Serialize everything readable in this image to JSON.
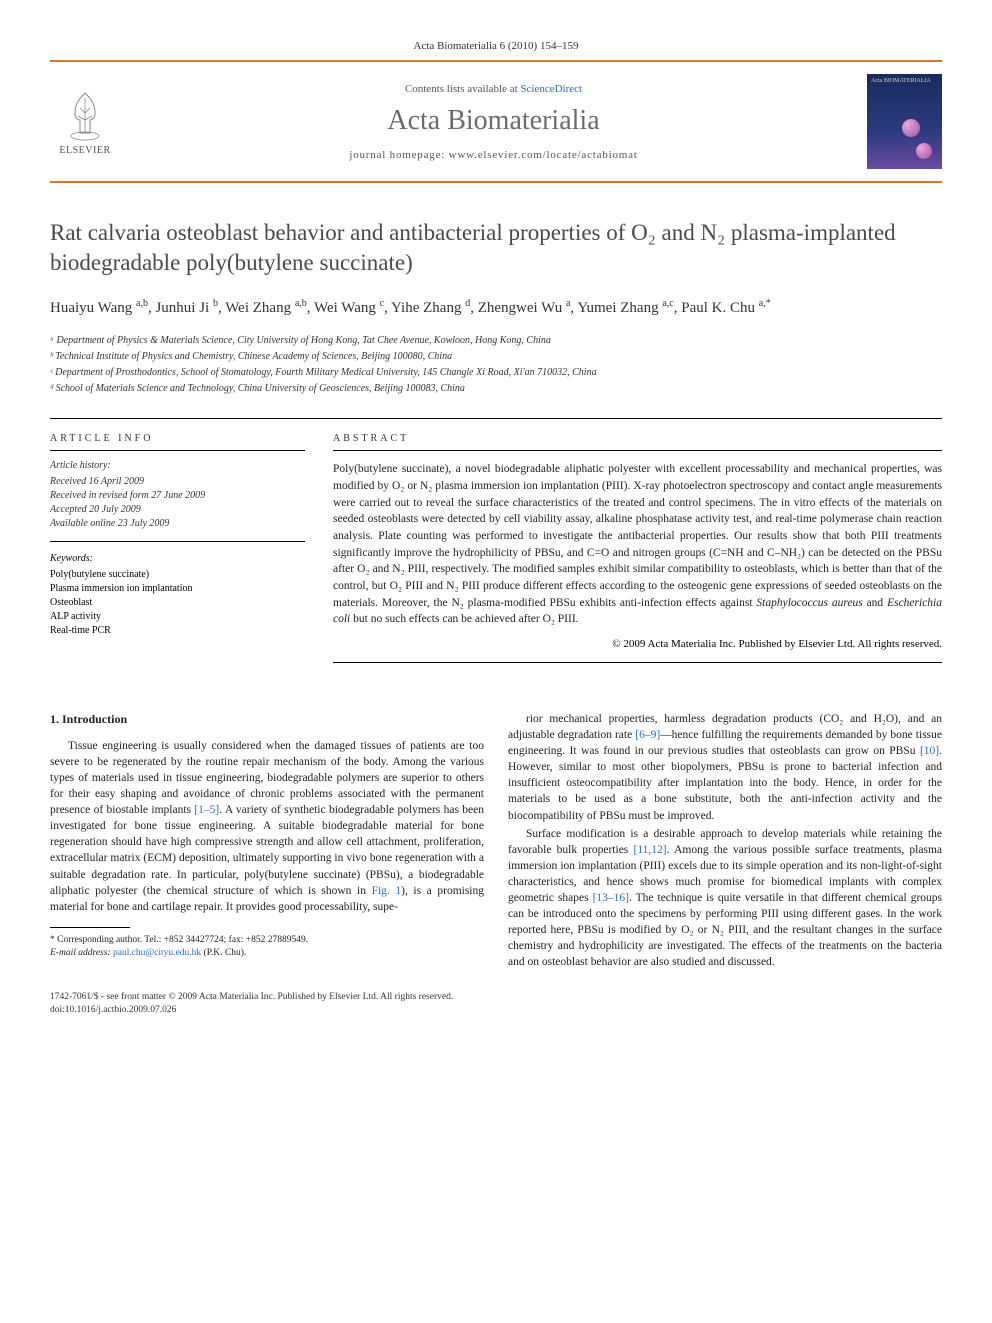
{
  "header": {
    "citation": "Acta Biomaterialia 6 (2010) 154–159",
    "contents_prefix": "Contents lists available at ",
    "contents_link": "ScienceDirect",
    "journal_name": "Acta Biomaterialia",
    "homepage_prefix": "journal homepage: ",
    "homepage_url": "www.elsevier.com/locate/actabiomat",
    "publisher": "ELSEVIER",
    "cover_label": "Acta BIOMATERIALIA"
  },
  "title": "Rat calvaria osteoblast behavior and antibacterial properties of O₂ and N₂ plasma-implanted biodegradable poly(butylene succinate)",
  "authors_html": "Huaiyu Wang <sup>a,b</sup>, Junhui Ji <sup>b</sup>, Wei Zhang <sup>a,b</sup>, Wei Wang <sup>c</sup>, Yihe Zhang <sup>d</sup>, Zhengwei Wu <sup>a</sup>, Yumei Zhang <sup>a,c</sup>, Paul K. Chu <sup>a,*</sup>",
  "affiliations": [
    "ᵃ Department of Physics & Materials Science, City University of Hong Kong, Tat Chee Avenue, Kowloon, Hong Kong, China",
    "ᵇ Technical Institute of Physics and Chemistry, Chinese Academy of Sciences, Beijing 100080, China",
    "ᶜ Department of Prosthodontics, School of Stomatology, Fourth Military Medical University, 145 Changle Xi Road, Xi'an 710032, China",
    "ᵈ School of Materials Science and Technology, China University of Geosciences, Beijing 100083, China"
  ],
  "article_info": {
    "heading": "article info",
    "history_label": "Article history:",
    "history": [
      "Received 16 April 2009",
      "Received in revised form 27 June 2009",
      "Accepted 20 July 2009",
      "Available online 23 July 2009"
    ],
    "keywords_label": "Keywords:",
    "keywords": [
      "Poly(butylene succinate)",
      "Plasma immersion ion implantation",
      "Osteoblast",
      "ALP activity",
      "Real-time PCR"
    ]
  },
  "abstract": {
    "heading": "abstract",
    "text": "Poly(butylene succinate), a novel biodegradable aliphatic polyester with excellent processability and mechanical properties, was modified by O₂ or N₂ plasma immersion ion implantation (PIII). X-ray photoelectron spectroscopy and contact angle measurements were carried out to reveal the surface characteristics of the treated and control specimens. The in vitro effects of the materials on seeded osteoblasts were detected by cell viability assay, alkaline phosphatase activity test, and real-time polymerase chain reaction analysis. Plate counting was performed to investigate the antibacterial properties. Our results show that both PIII treatments significantly improve the hydrophilicity of PBSu, and C=O and nitrogen groups (C=NH and C–NH₂) can be detected on the PBSu after O₂ and N₂ PIII, respectively. The modified samples exhibit similar compatibility to osteoblasts, which is better than that of the control, but O₂ PIII and N₂ PIII produce different effects according to the osteogenic gene expressions of seeded osteoblasts on the materials. Moreover, the N₂ plasma-modified PBSu exhibits anti-infection effects against Staphylococcus aureus and Escherichia coli but no such effects can be achieved after O₂ PIII.",
    "copyright": "© 2009 Acta Materialia Inc. Published by Elsevier Ltd. All rights reserved."
  },
  "body": {
    "section_heading": "1. Introduction",
    "col1_p1": "Tissue engineering is usually considered when the damaged tissues of patients are too severe to be regenerated by the routine repair mechanism of the body. Among the various types of materials used in tissue engineering, biodegradable polymers are superior to others for their easy shaping and avoidance of chronic problems associated with the permanent presence of biostable implants [1–5]. A variety of synthetic biodegradable polymers has been investigated for bone tissue engineering. A suitable biodegradable material for bone regeneration should have high compressive strength and allow cell attachment, proliferation, extracellular matrix (ECM) deposition, ultimately supporting in vivo bone regeneration with a suitable degradation rate. In particular, poly(butylene succinate) (PBSu), a biodegradable aliphatic polyester (the chemical structure of which is shown in Fig. 1), is a promising material for bone and cartilage repair. It provides good processability, supe-",
    "col2_p1": "rior mechanical properties, harmless degradation products (CO₂ and H₂O), and an adjustable degradation rate [6–9]—hence fulfilling the requirements demanded by bone tissue engineering. It was found in our previous studies that osteoblasts can grow on PBSu [10]. However, similar to most other biopolymers, PBSu is prone to bacterial infection and insufficient osteocompatibility after implantation into the body. Hence, in order for the materials to be used as a bone substitute, both the anti-infection activity and the biocompatibility of PBSu must be improved.",
    "col2_p2": "Surface modification is a desirable approach to develop materials while retaining the favorable bulk properties [11,12]. Among the various possible surface treatments, plasma immersion ion implantation (PIII) excels due to its simple operation and its non-light-of-sight characteristics, and hence shows much promise for biomedical implants with complex geometric shapes [13–16]. The technique is quite versatile in that different chemical groups can be introduced onto the specimens by performing PIII using different gases. In the work reported here, PBSu is modified by O₂ or N₂ PIII, and the resultant changes in the surface chemistry and hydrophilicity are investigated. The effects of the treatments on the bacteria and on osteoblast behavior are also studied and discussed."
  },
  "corresponding": {
    "label": "* Corresponding author. Tel.: +852 34427724; fax: +852 27889549.",
    "email_label": "E-mail address: ",
    "email": "paul.chu@cityu.edu.hk",
    "email_suffix": " (P.K. Chu)."
  },
  "footer": {
    "line1": "1742-7061/$ - see front matter © 2009 Acta Materialia Inc. Published by Elsevier Ltd. All rights reserved.",
    "line2": "doi:10.1016/j.actbio.2009.07.026"
  },
  "colors": {
    "accent": "#d97528",
    "link": "#2a6ebb",
    "title_gray": "#4a4a4a",
    "journal_gray": "#6b6b6b"
  }
}
